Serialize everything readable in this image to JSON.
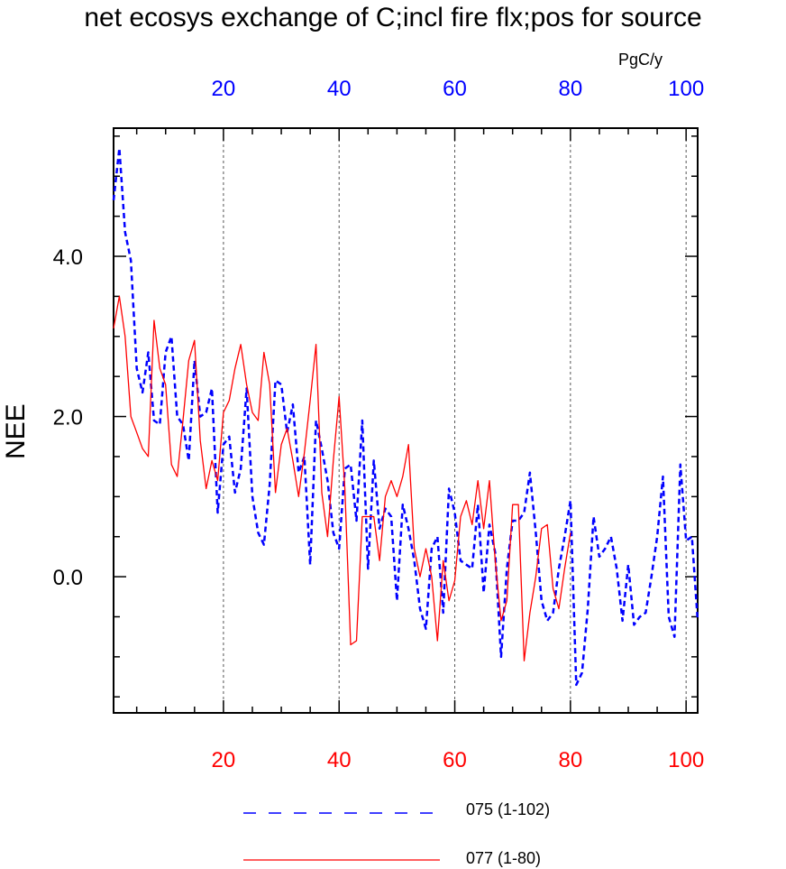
{
  "chart_data": {
    "type": "line",
    "title": "net ecosys exchange of C;incl fire flx;pos for source",
    "ylabel": "NEE",
    "units": "PgC/y",
    "xlim": [
      1,
      102
    ],
    "ylim": [
      -1.7,
      5.6
    ],
    "x_ticks": [
      20,
      40,
      60,
      80,
      100
    ],
    "y_ticks": [
      0.0,
      2.0,
      4.0
    ],
    "y_tick_labels": [
      "0.0",
      "2.0",
      "4.0"
    ],
    "vertical_grid": [
      20,
      40,
      60,
      80,
      100
    ],
    "top_axis_color": "#0000ff",
    "bottom_axis_color": "#ff0000",
    "series": [
      {
        "name": "075 (1-102)",
        "color": "#0000ff",
        "style": "dashed",
        "x": [
          1,
          2,
          3,
          4,
          5,
          6,
          7,
          8,
          9,
          10,
          11,
          12,
          13,
          14,
          15,
          16,
          17,
          18,
          19,
          20,
          21,
          22,
          23,
          24,
          25,
          26,
          27,
          28,
          29,
          30,
          31,
          32,
          33,
          34,
          35,
          36,
          37,
          38,
          39,
          40,
          41,
          42,
          43,
          44,
          45,
          46,
          47,
          48,
          49,
          50,
          51,
          52,
          53,
          54,
          55,
          56,
          57,
          58,
          59,
          60,
          61,
          62,
          63,
          64,
          65,
          66,
          67,
          68,
          69,
          70,
          71,
          72,
          73,
          74,
          75,
          76,
          77,
          78,
          79,
          80,
          81,
          82,
          83,
          84,
          85,
          86,
          87,
          88,
          89,
          90,
          91,
          92,
          93,
          94,
          95,
          96,
          97,
          98,
          99,
          100,
          101,
          102
        ],
        "values": [
          4.7,
          5.35,
          4.3,
          3.95,
          2.6,
          2.3,
          2.8,
          1.95,
          1.9,
          2.8,
          3.0,
          2.0,
          1.9,
          1.45,
          2.7,
          2.0,
          2.05,
          2.35,
          0.8,
          1.65,
          1.75,
          1.05,
          1.35,
          2.35,
          1.0,
          0.55,
          0.4,
          1.15,
          2.45,
          2.4,
          1.8,
          2.15,
          1.3,
          1.5,
          0.15,
          1.95,
          1.6,
          1.2,
          0.55,
          0.35,
          1.35,
          1.4,
          0.7,
          1.95,
          0.1,
          1.45,
          0.6,
          0.85,
          0.75,
          -0.3,
          0.9,
          0.6,
          0.2,
          -0.4,
          -0.65,
          0.35,
          0.5,
          -0.45,
          1.1,
          0.8,
          0.2,
          0.15,
          0.1,
          0.9,
          -0.2,
          0.65,
          0.3,
          -1.0,
          0.1,
          0.7,
          0.7,
          0.8,
          1.3,
          0.55,
          -0.3,
          -0.55,
          -0.45,
          0.1,
          0.5,
          0.95,
          -1.35,
          -1.2,
          -0.4,
          0.75,
          0.25,
          0.35,
          0.5,
          0.1,
          -0.55,
          0.15,
          -0.6,
          -0.5,
          -0.45,
          0.0,
          0.5,
          1.25,
          -0.5,
          -0.75,
          1.4,
          0.45,
          0.5,
          -0.55
        ]
      },
      {
        "name": "077 (1-80)",
        "color": "#ff0000",
        "style": "solid",
        "x": [
          1,
          2,
          3,
          4,
          5,
          6,
          7,
          8,
          9,
          10,
          11,
          12,
          13,
          14,
          15,
          16,
          17,
          18,
          19,
          20,
          21,
          22,
          23,
          24,
          25,
          26,
          27,
          28,
          29,
          30,
          31,
          32,
          33,
          34,
          35,
          36,
          37,
          38,
          39,
          40,
          41,
          42,
          43,
          44,
          45,
          46,
          47,
          48,
          49,
          50,
          51,
          52,
          53,
          54,
          55,
          56,
          57,
          58,
          59,
          60,
          61,
          62,
          63,
          64,
          65,
          66,
          67,
          68,
          69,
          70,
          71,
          72,
          73,
          74,
          75,
          76,
          77,
          78,
          79,
          80
        ],
        "values": [
          3.1,
          3.5,
          3.0,
          2.0,
          1.8,
          1.6,
          1.5,
          3.2,
          2.6,
          2.4,
          1.4,
          1.25,
          1.95,
          2.7,
          2.95,
          1.7,
          1.1,
          1.45,
          1.2,
          2.05,
          2.2,
          2.6,
          2.9,
          2.4,
          2.05,
          1.95,
          2.8,
          2.4,
          1.05,
          1.65,
          1.85,
          1.45,
          1.0,
          1.55,
          2.2,
          2.9,
          1.05,
          0.5,
          1.45,
          2.25,
          1.1,
          -0.85,
          -0.8,
          0.75,
          0.75,
          0.75,
          0.2,
          1.0,
          1.2,
          1.0,
          1.25,
          1.65,
          0.35,
          0.0,
          0.35,
          0.0,
          -0.8,
          0.2,
          -0.3,
          -0.05,
          0.75,
          0.95,
          0.65,
          1.2,
          0.6,
          1.2,
          0.2,
          -0.55,
          -0.3,
          0.9,
          0.9,
          -1.05,
          -0.45,
          0.0,
          0.6,
          0.65,
          -0.15,
          -0.4,
          0.1,
          0.55
        ]
      }
    ]
  }
}
